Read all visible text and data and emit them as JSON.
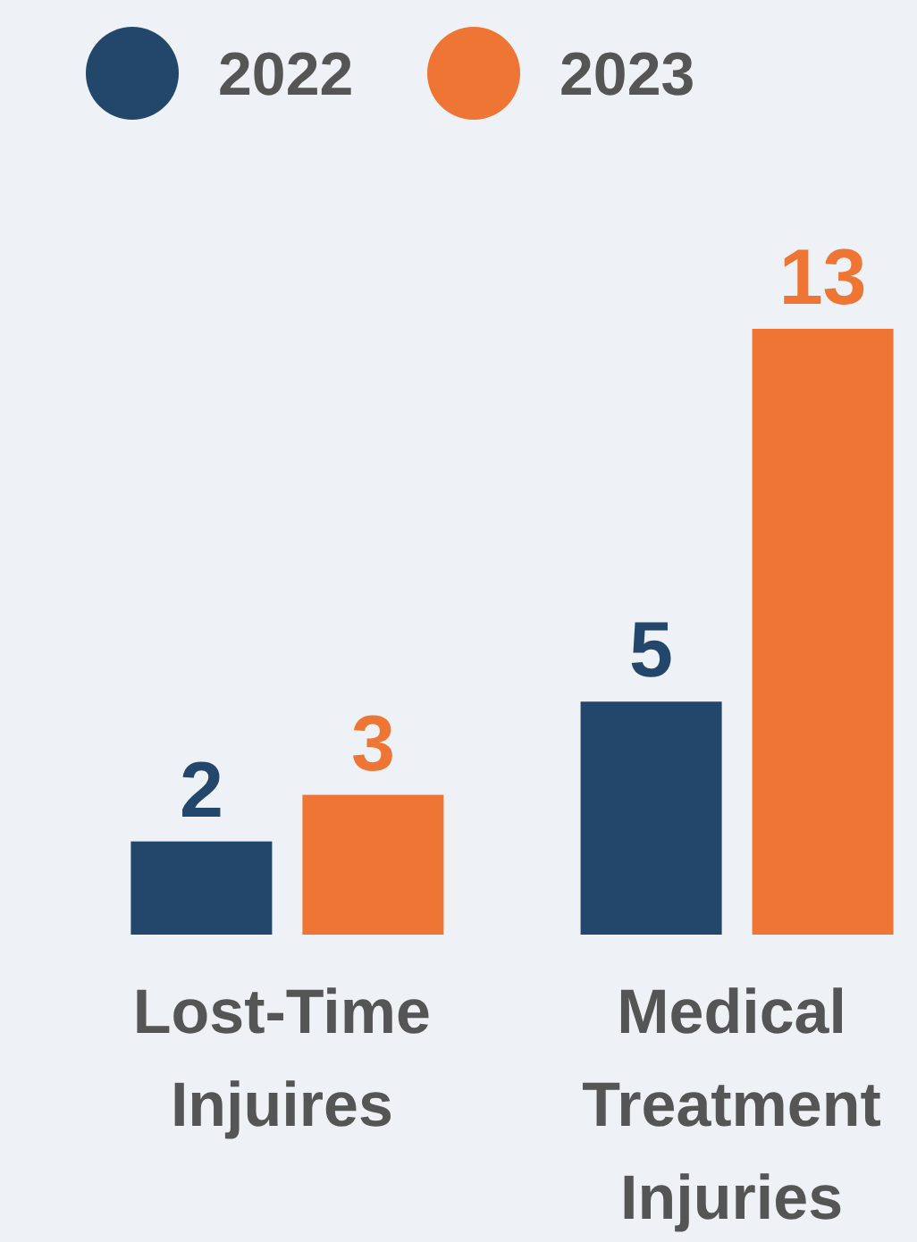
{
  "chart_data": {
    "type": "bar",
    "categories": [
      "Lost-Time Injuires",
      "Medical Treatment Injuries"
    ],
    "series": [
      {
        "name": "2022",
        "color": "#22476b",
        "values": [
          2,
          5
        ]
      },
      {
        "name": "2023",
        "color": "#ee7534",
        "values": [
          3,
          13
        ]
      }
    ],
    "data_labels": true,
    "legend": "top left"
  }
}
